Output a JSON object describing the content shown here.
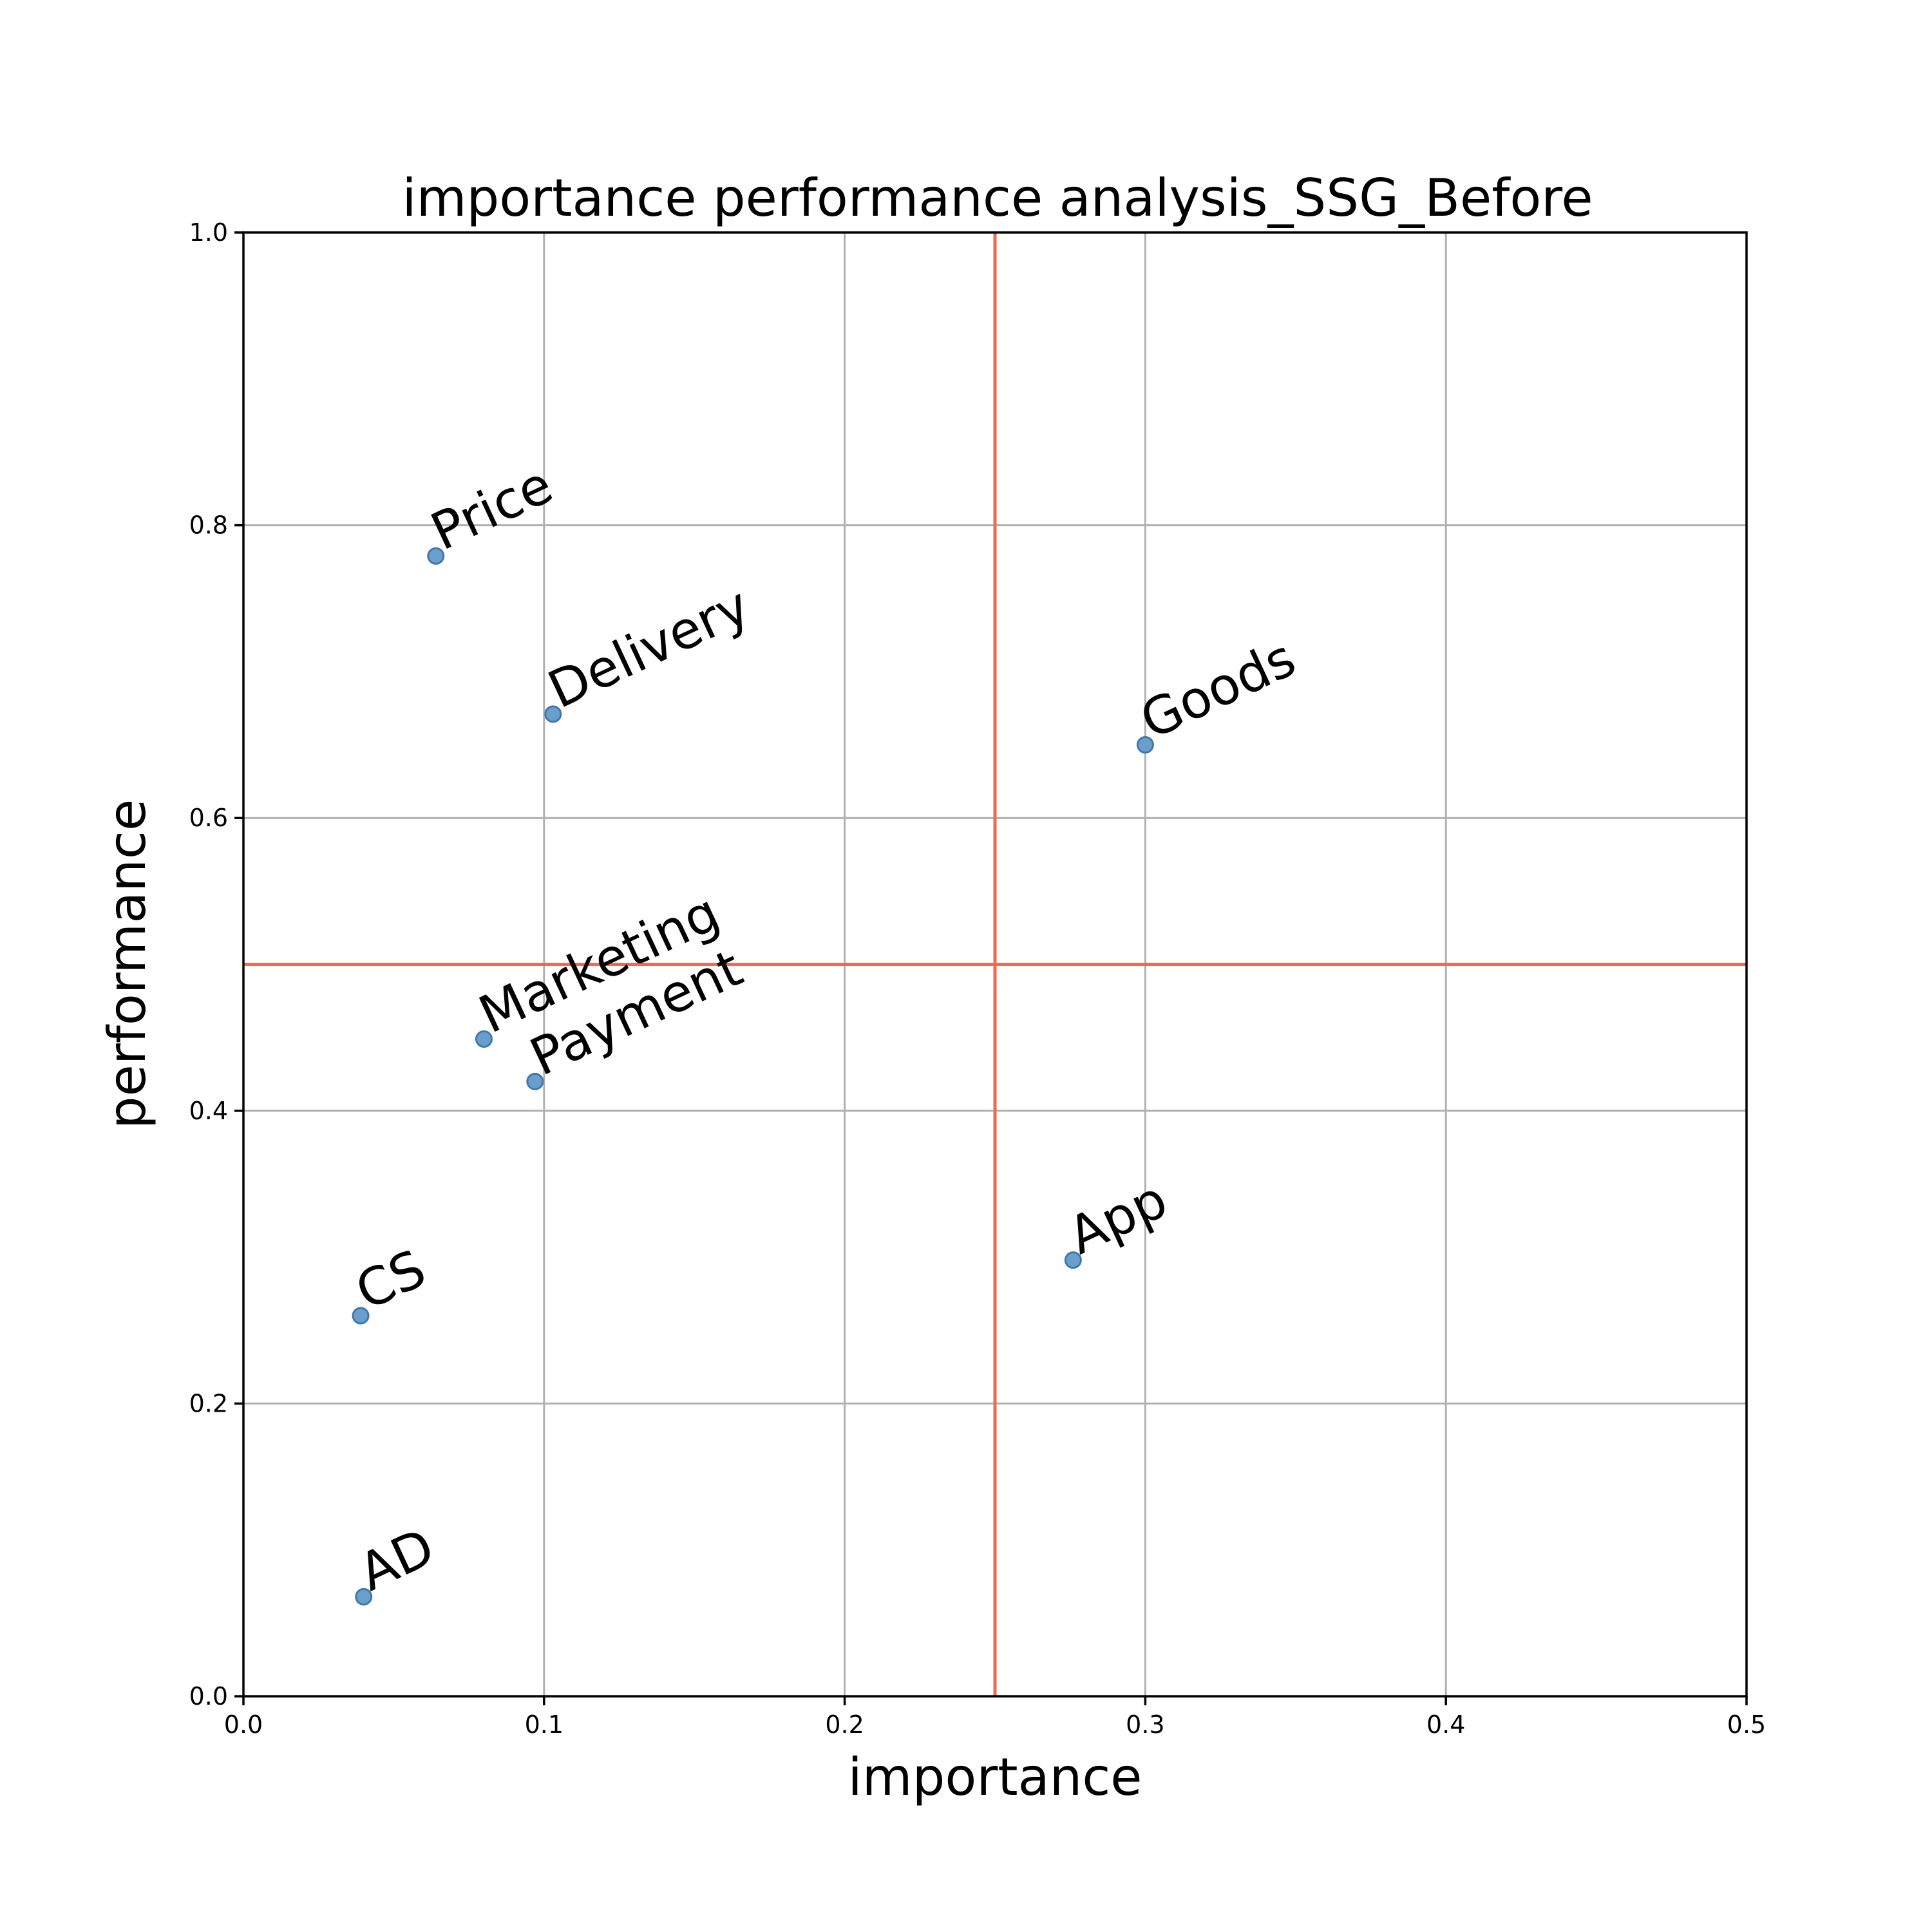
{
  "chart_data": {
    "type": "scatter",
    "title": "importance performance analysis_SSG_Before",
    "xlabel": "importance",
    "ylabel": "performance",
    "xlim": [
      0.0,
      0.5
    ],
    "ylim": [
      0.0,
      1.0
    ],
    "xticks": [
      "0.0",
      "0.1",
      "0.2",
      "0.3",
      "0.4",
      "0.5"
    ],
    "yticks": [
      "0.0",
      "0.2",
      "0.4",
      "0.6",
      "0.8",
      "1.0"
    ],
    "grid": true,
    "reference_lines": {
      "x": 0.25,
      "y": 0.5,
      "color": "#ef6a55"
    },
    "marker_color": "#6a9fcb",
    "points": [
      {
        "label": "Price",
        "x": 0.064,
        "y": 0.779
      },
      {
        "label": "Delivery",
        "x": 0.103,
        "y": 0.671
      },
      {
        "label": "Goods",
        "x": 0.3,
        "y": 0.65
      },
      {
        "label": "Marketing",
        "x": 0.08,
        "y": 0.449
      },
      {
        "label": "Payment",
        "x": 0.097,
        "y": 0.42
      },
      {
        "label": "App",
        "x": 0.276,
        "y": 0.298
      },
      {
        "label": "CS",
        "x": 0.039,
        "y": 0.26
      },
      {
        "label": "AD",
        "x": 0.04,
        "y": 0.068
      }
    ]
  }
}
